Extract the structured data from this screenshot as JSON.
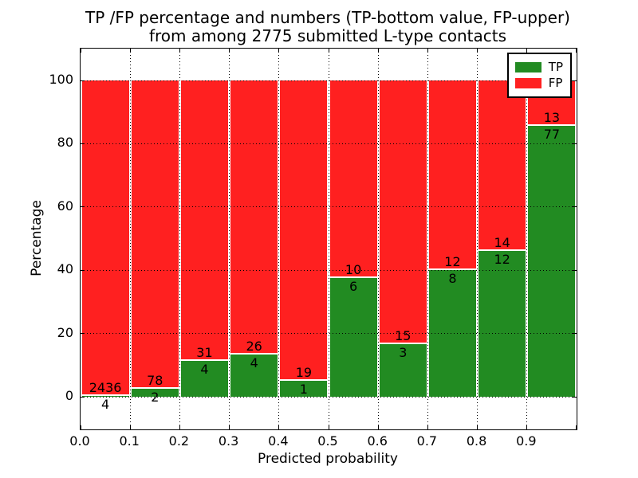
{
  "title": {
    "line1": "TP /FP percentage and numbers (TP-bottom value, FP-upper)",
    "line2": "from among 2775 submitted L-type contacts"
  },
  "chart_data": {
    "type": "bar",
    "stacked": true,
    "title": "TP /FP percentage and numbers (TP-bottom value, FP-upper) from among 2775 submitted L-type contacts",
    "xlabel": "Predicted probability",
    "ylabel": "Percentage",
    "xlim": [
      0.0,
      1.0
    ],
    "ylim": [
      -10,
      110
    ],
    "xticks": [
      "0.0",
      "0.1",
      "0.2",
      "0.3",
      "0.4",
      "0.5",
      "0.6",
      "0.7",
      "0.8",
      "0.9"
    ],
    "yticks": [
      0,
      20,
      40,
      60,
      80,
      100
    ],
    "grid": true,
    "bin_width": 0.1,
    "bin_starts": [
      0.0,
      0.1,
      0.2,
      0.3,
      0.4,
      0.5,
      0.6,
      0.7,
      0.8,
      0.9
    ],
    "series": [
      {
        "name": "TP",
        "color": "#228b22",
        "values": [
          4,
          2,
          4,
          4,
          1,
          6,
          3,
          8,
          12,
          77
        ]
      },
      {
        "name": "FP",
        "color": "#ff2020",
        "values": [
          2436,
          78,
          31,
          26,
          19,
          10,
          15,
          12,
          14,
          13
        ]
      }
    ],
    "tp_percent": [
      0.16,
      2.5,
      11.43,
      13.33,
      5.0,
      37.5,
      16.67,
      40.0,
      46.15,
      85.56
    ],
    "total_contacts": 2775,
    "legend": {
      "position": "upper right",
      "entries": [
        "TP",
        "FP"
      ]
    }
  },
  "colors": {
    "background": "#ffffff",
    "axis": "#000000",
    "tp": "#228b22",
    "fp": "#ff2020"
  }
}
